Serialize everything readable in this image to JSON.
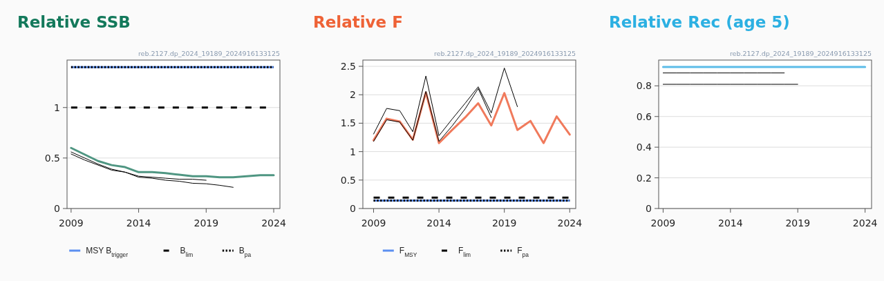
{
  "chart_data": [
    {
      "type": "line",
      "title": "Relative SSB",
      "annotations": [
        "reb.2127.dp_2024_19189_2024916133125"
      ],
      "xlim": [
        2008.7,
        2024.46
      ],
      "xticks": [
        2009,
        2014,
        2019,
        2024
      ],
      "ylim": [
        0,
        1.47
      ],
      "yticks": [
        0,
        0.5,
        1
      ],
      "grid": "y",
      "legend": "bottom",
      "series": [
        {
          "color": "#000000",
          "x": [
            2009,
            2010,
            2011,
            2012,
            2013,
            2014,
            2015,
            2016,
            2017,
            2018,
            2019
          ],
          "values": [
            0.56,
            0.5,
            0.44,
            0.39,
            0.36,
            0.32,
            0.31,
            0.3,
            0.29,
            0.29,
            0.28
          ]
        },
        {
          "color": "#000000",
          "x": [
            2009,
            2010,
            2011,
            2012,
            2013,
            2014,
            2015,
            2016,
            2017,
            2018,
            2019,
            2020,
            2021
          ],
          "values": [
            0.54,
            0.48,
            0.43,
            0.38,
            0.36,
            0.31,
            0.3,
            0.28,
            0.27,
            0.25,
            0.245,
            0.23,
            0.21
          ]
        },
        {
          "color": "#4f9682",
          "x": [
            2009,
            2010,
            2011,
            2012,
            2013,
            2014,
            2015,
            2016,
            2017,
            2018,
            2019,
            2020,
            2021,
            2022,
            2023,
            2024
          ],
          "values": [
            0.6,
            0.535,
            0.47,
            0.43,
            0.41,
            0.36,
            0.36,
            0.35,
            0.335,
            0.32,
            0.32,
            0.31,
            0.31,
            0.32,
            0.33,
            0.33
          ]
        }
      ],
      "ref_lines": [
        {
          "axis": "y",
          "value": 1.4,
          "label": "MSY B$_{trigger}$",
          "color": "#5b8ff0",
          "line_style": "solid"
        },
        {
          "axis": "y",
          "value": 1,
          "label": "B$_{lim}$",
          "color": "#000000",
          "line_style": "dashed"
        },
        {
          "axis": "y",
          "value": 1.4,
          "label": "B$_{pa}$",
          "color": "#000000",
          "line_style": "dotted"
        }
      ]
    },
    {
      "type": "line",
      "title": "Relative F",
      "annotations": [
        "reb.2127.dp_2024_19189_2024916133125"
      ],
      "xlim": [
        2008.18,
        2024.46
      ],
      "xticks": [
        2009,
        2014,
        2019,
        2024
      ],
      "ylim": [
        0,
        2.61
      ],
      "yticks": [
        0,
        0.5,
        1,
        1.5,
        2,
        2.5
      ],
      "grid": "y",
      "legend": "bottom",
      "series": [
        {
          "color": "#f07a5c",
          "x": [
            2009,
            2010,
            2011,
            2012,
            2013,
            2014,
            2015,
            2016,
            2017,
            2018,
            2019,
            2020,
            2021,
            2022,
            2023,
            2024
          ],
          "values": [
            1.2,
            1.58,
            1.53,
            1.21,
            2.04,
            1.15,
            1.38,
            1.6,
            1.85,
            1.46,
            2.03,
            1.38,
            1.54,
            1.15,
            1.62,
            1.3
          ]
        },
        {
          "color": "#000000",
          "x": [
            2009,
            2010,
            2011,
            2012,
            2013,
            2014,
            2015,
            2016,
            2017,
            2018,
            2019,
            2020
          ],
          "values": [
            1.31,
            1.76,
            1.72,
            1.35,
            2.33,
            1.28,
            1.57,
            1.85,
            2.14,
            1.68,
            2.47,
            1.79
          ]
        },
        {
          "color": "#000000",
          "x": [
            2009,
            2010,
            2011,
            2012,
            2013,
            2014,
            2015,
            2016,
            2017,
            2018
          ],
          "values": [
            1.18,
            1.56,
            1.52,
            1.2,
            2.06,
            1.18,
            1.45,
            1.75,
            2.11,
            1.6
          ]
        }
      ],
      "ref_lines": [
        {
          "axis": "y",
          "value": 0.14,
          "label": "F$_{MSY}$",
          "color": "#5b8ff0",
          "line_style": "solid"
        },
        {
          "axis": "y",
          "value": 0.19,
          "label": "F$_{lim}$",
          "color": "#000000",
          "line_style": "dashed"
        },
        {
          "axis": "y",
          "value": 0.14,
          "label": "F$_{pa}$",
          "color": "#000000",
          "line_style": "dotted"
        }
      ]
    },
    {
      "type": "line",
      "title": "Relative Rec (age 5)",
      "annotations": [
        "reb.2127.dp_2024_19189_2024916133125"
      ],
      "xlim": [
        2008.67,
        2024.48
      ],
      "xticks": [
        2009,
        2014,
        2019,
        2024
      ],
      "ylim": [
        0,
        0.968
      ],
      "yticks": [
        0,
        0.2,
        0.4,
        0.6,
        0.8
      ],
      "grid": "y",
      "series": [
        {
          "color": "#000000",
          "x": [
            2009,
            2010,
            2011,
            2012,
            2013,
            2014,
            2015,
            2016,
            2017,
            2018
          ],
          "values": [
            0.884,
            0.884,
            0.884,
            0.884,
            0.884,
            0.884,
            0.884,
            0.884,
            0.884,
            0.884
          ]
        },
        {
          "color": "#000000",
          "x": [
            2009,
            2010,
            2011,
            2012,
            2013,
            2014,
            2015,
            2016,
            2017,
            2018,
            2019
          ],
          "values": [
            0.81,
            0.81,
            0.81,
            0.81,
            0.81,
            0.81,
            0.81,
            0.81,
            0.81,
            0.81,
            0.81
          ]
        },
        {
          "color": "#5bbce8",
          "x": [
            2009,
            2010,
            2011,
            2012,
            2013,
            2014,
            2015,
            2016,
            2017,
            2018,
            2019,
            2020,
            2021,
            2022,
            2023,
            2024
          ],
          "values": [
            0.923,
            0.923,
            0.923,
            0.923,
            0.923,
            0.923,
            0.923,
            0.923,
            0.923,
            0.923,
            0.923,
            0.923,
            0.923,
            0.923,
            0.923,
            0.923
          ]
        }
      ]
    }
  ]
}
